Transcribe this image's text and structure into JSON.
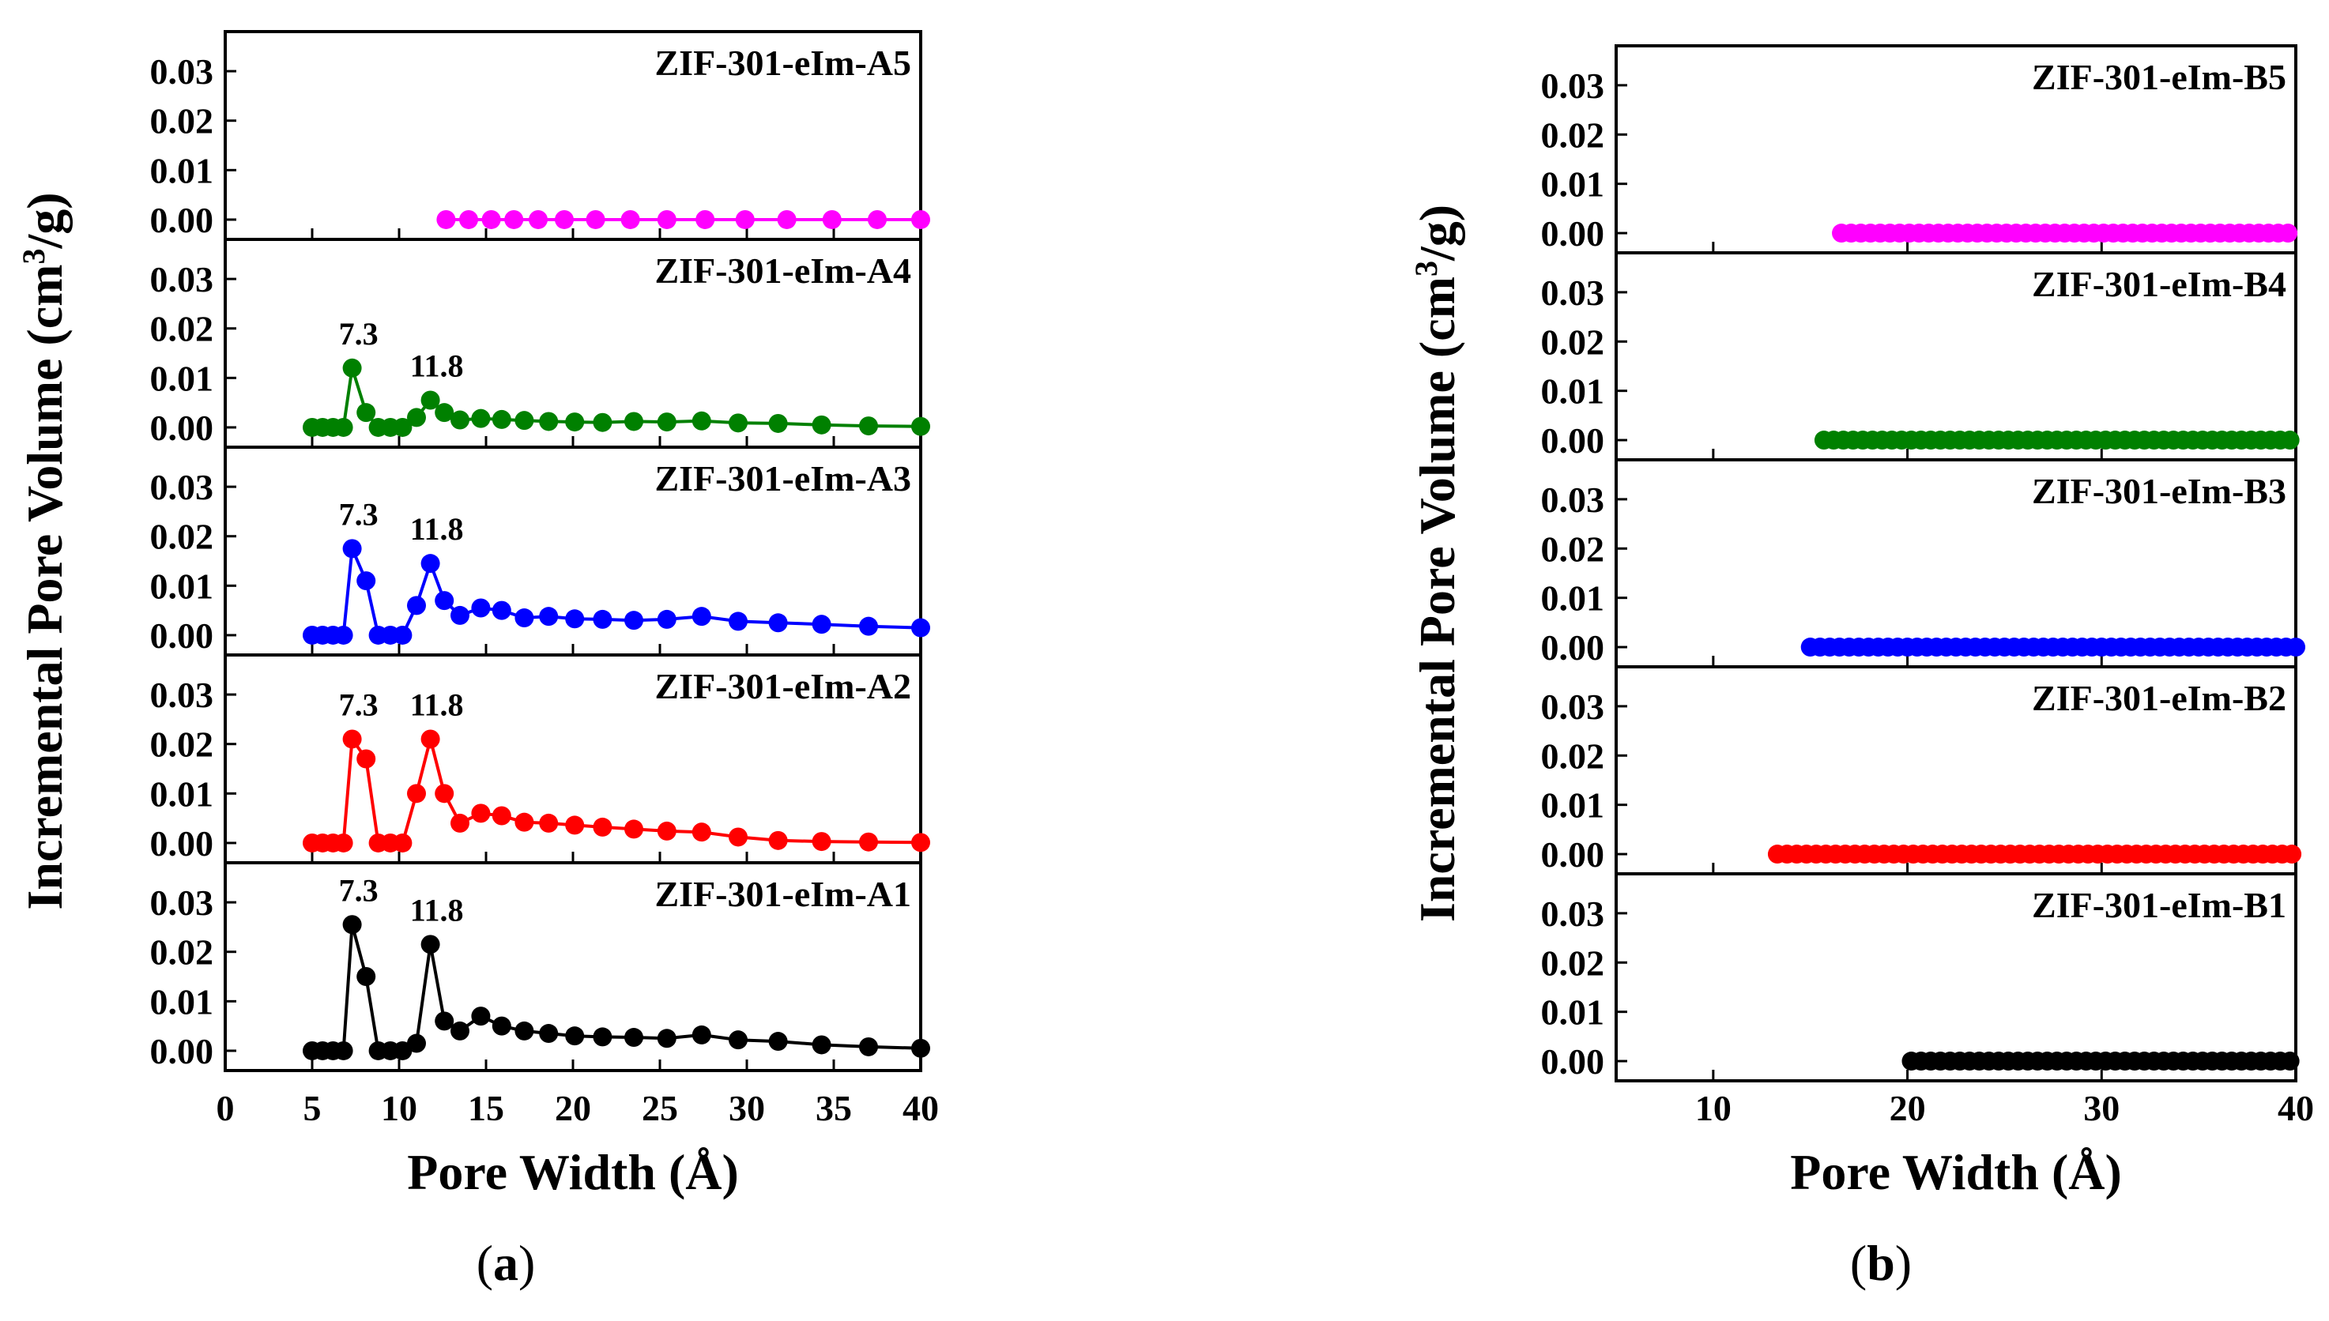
{
  "chart_data": [
    {
      "id": "a",
      "type": "line",
      "xlabel": "Pore Width (Å)",
      "ylabel": "Incremental Pore Volume (cm³/g)",
      "ylabel_main": "Incremental Pore Volume (cm",
      "ylabel_sup": "3",
      "ylabel_end": "/g)",
      "xlim": [
        0,
        40
      ],
      "ylim": [
        -0.004,
        0.038
      ],
      "xticks": [
        "0",
        "5",
        "10",
        "15",
        "20",
        "25",
        "30",
        "35",
        "40"
      ],
      "xtick_values": [
        0,
        5,
        10,
        15,
        20,
        25,
        30,
        35,
        40
      ],
      "yticks": [
        "0.00",
        "0.01",
        "0.02",
        "0.03"
      ],
      "ytick_values": [
        0,
        0.01,
        0.02,
        0.03
      ],
      "caption_open": "(",
      "caption_letter": "a",
      "caption_close": ")",
      "panels": [
        {
          "label": "ZIF-301-eIm-A5",
          "color": "#ff00ff",
          "x": [
            12.7,
            14.0,
            15.3,
            16.6,
            18.0,
            19.5,
            21.3,
            23.3,
            25.4,
            27.6,
            29.9,
            32.3,
            34.9,
            37.5,
            40.0
          ],
          "y": [
            0,
            0,
            0,
            0,
            0,
            0,
            0,
            0,
            0,
            0,
            0,
            0,
            0,
            0,
            0
          ],
          "peaks": []
        },
        {
          "label": "ZIF-301-eIm-A4",
          "color": "#008000",
          "x": [
            5.0,
            5.6,
            6.2,
            6.8,
            7.3,
            8.1,
            8.8,
            9.5,
            10.2,
            11.0,
            11.8,
            12.6,
            13.5,
            14.7,
            15.9,
            17.2,
            18.6,
            20.1,
            21.7,
            23.5,
            25.4,
            27.4,
            29.5,
            31.8,
            34.3,
            37.0,
            40.0
          ],
          "y": [
            0,
            0,
            0,
            0,
            0.012,
            0.003,
            0,
            0,
            0,
            0.002,
            0.0055,
            0.003,
            0.0015,
            0.0018,
            0.0016,
            0.0014,
            0.0012,
            0.0011,
            0.001,
            0.0012,
            0.0011,
            0.0013,
            0.0009,
            0.0008,
            0.0005,
            0.0003,
            0.0002
          ],
          "peaks": [
            {
              "x": 7.3,
              "y": 0.012,
              "text": "7.3"
            },
            {
              "x": 11.8,
              "y": 0.0055,
              "text": "11.8"
            }
          ]
        },
        {
          "label": "ZIF-301-eIm-A3",
          "color": "#0000ff",
          "x": [
            5.0,
            5.6,
            6.2,
            6.8,
            7.3,
            8.1,
            8.8,
            9.5,
            10.2,
            11.0,
            11.8,
            12.6,
            13.5,
            14.7,
            15.9,
            17.2,
            18.6,
            20.1,
            21.7,
            23.5,
            25.4,
            27.4,
            29.5,
            31.8,
            34.3,
            37.0,
            40.0
          ],
          "y": [
            0,
            0,
            0,
            0,
            0.0175,
            0.011,
            0,
            0,
            0,
            0.006,
            0.0145,
            0.007,
            0.004,
            0.0055,
            0.005,
            0.0035,
            0.0038,
            0.0033,
            0.0032,
            0.003,
            0.0032,
            0.0038,
            0.0028,
            0.0025,
            0.0022,
            0.0018,
            0.0015
          ],
          "peaks": [
            {
              "x": 7.3,
              "y": 0.0175,
              "text": "7.3"
            },
            {
              "x": 11.8,
              "y": 0.0145,
              "text": "11.8"
            }
          ]
        },
        {
          "label": "ZIF-301-eIm-A2",
          "color": "#ff0000",
          "x": [
            5.0,
            5.6,
            6.2,
            6.8,
            7.3,
            8.1,
            8.8,
            9.5,
            10.2,
            11.0,
            11.8,
            12.6,
            13.5,
            14.7,
            15.9,
            17.2,
            18.6,
            20.1,
            21.7,
            23.5,
            25.4,
            27.4,
            29.5,
            31.8,
            34.3,
            37.0,
            40.0
          ],
          "y": [
            0,
            0,
            0,
            0,
            0.021,
            0.017,
            0,
            0,
            0,
            0.01,
            0.021,
            0.01,
            0.004,
            0.006,
            0.0055,
            0.0042,
            0.004,
            0.0036,
            0.0032,
            0.0028,
            0.0024,
            0.0022,
            0.0012,
            0.0005,
            0.0003,
            0.0002,
            0.0001
          ],
          "peaks": [
            {
              "x": 7.3,
              "y": 0.021,
              "text": "7.3"
            },
            {
              "x": 11.8,
              "y": 0.021,
              "text": "11.8"
            }
          ]
        },
        {
          "label": "ZIF-301-eIm-A1",
          "color": "#000000",
          "x": [
            5.0,
            5.6,
            6.2,
            6.8,
            7.3,
            8.1,
            8.8,
            9.5,
            10.2,
            11.0,
            11.8,
            12.6,
            13.5,
            14.7,
            15.9,
            17.2,
            18.6,
            20.1,
            21.7,
            23.5,
            25.4,
            27.4,
            29.5,
            31.8,
            34.3,
            37.0,
            40.0
          ],
          "y": [
            0,
            0,
            0,
            0,
            0.0255,
            0.015,
            0,
            0,
            0,
            0.0015,
            0.0215,
            0.006,
            0.004,
            0.007,
            0.005,
            0.004,
            0.0035,
            0.003,
            0.0028,
            0.0027,
            0.0025,
            0.0032,
            0.0022,
            0.0019,
            0.0012,
            0.0008,
            0.0005
          ],
          "peaks": [
            {
              "x": 7.3,
              "y": 0.0255,
              "text": "7.3"
            },
            {
              "x": 11.8,
              "y": 0.0215,
              "text": "11.8"
            }
          ]
        }
      ]
    },
    {
      "id": "b",
      "type": "line",
      "xlabel": "Pore Width (Å)",
      "ylabel": "Incremental Pore Volume (cm³/g)",
      "ylabel_main": "Incremental Pore Volume (cm",
      "ylabel_sup": "3",
      "ylabel_end": "/g)",
      "xlim": [
        5,
        40
      ],
      "ylim": [
        -0.004,
        0.038
      ],
      "xticks": [
        "10",
        "20",
        "30",
        "40"
      ],
      "xtick_values": [
        10,
        20,
        30,
        40
      ],
      "yticks": [
        "0.00",
        "0.01",
        "0.02",
        "0.03"
      ],
      "ytick_values": [
        0,
        0.01,
        0.02,
        0.03
      ],
      "caption_open": "(",
      "caption_letter": "b",
      "caption_close": ")",
      "panels": [
        {
          "label": "ZIF-301-eIm-B5",
          "color": "#ff00ff",
          "x_start": 16.6,
          "x_end": 40.0,
          "x_step": 0.5,
          "peaks": []
        },
        {
          "label": "ZIF-301-eIm-B4",
          "color": "#008000",
          "x_start": 15.7,
          "x_end": 40.0,
          "x_step": 0.5,
          "peaks": []
        },
        {
          "label": "ZIF-301-eIm-B3",
          "color": "#0000ff",
          "x_start": 15.0,
          "x_end": 40.0,
          "x_step": 0.5,
          "peaks": []
        },
        {
          "label": "ZIF-301-eIm-B2",
          "color": "#ff0000",
          "x_start": 13.3,
          "x_end": 40.0,
          "x_step": 0.5,
          "peaks": []
        },
        {
          "label": "ZIF-301-eIm-B1",
          "color": "#000000",
          "x_start": 20.2,
          "x_end": 40.0,
          "x_step": 0.5,
          "peaks": []
        }
      ]
    }
  ]
}
